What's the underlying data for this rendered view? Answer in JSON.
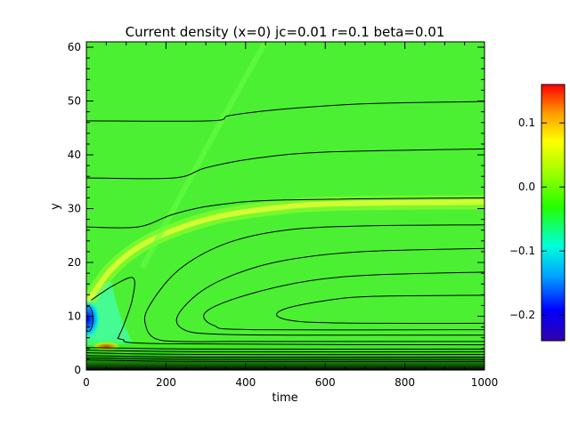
{
  "chart_data": {
    "type": "heatmap",
    "title": "Current density (x=0) jc=0.01 r=0.1 beta=0.01",
    "xlabel": "time",
    "ylabel": "y",
    "xlim": [
      0,
      1000
    ],
    "ylim": [
      0,
      61
    ],
    "xticks": [
      0,
      200,
      400,
      600,
      800,
      1000
    ],
    "yticks": [
      0,
      10,
      20,
      30,
      40,
      50,
      60
    ],
    "colorbar": {
      "range": [
        -0.24,
        0.16
      ],
      "ticks": [
        0.1,
        0.0,
        -0.1,
        -0.2
      ],
      "tick_labels": [
        "0.1",
        "0.0",
        "−0.1",
        "−0.2"
      ],
      "colormap": "rainbow"
    },
    "background_value": 0.0,
    "contour_levels": [
      {
        "label": "contour-1",
        "points": [
          [
            0,
            46.3
          ],
          [
            310,
            46.3
          ],
          [
            360,
            47.3
          ],
          [
            480,
            48.4
          ],
          [
            700,
            49.5
          ],
          [
            1000,
            49.9
          ]
        ]
      },
      {
        "label": "contour-2",
        "points": [
          [
            0,
            35.7
          ],
          [
            220,
            35.7
          ],
          [
            300,
            37.6
          ],
          [
            420,
            39.3
          ],
          [
            600,
            40.5
          ],
          [
            1000,
            41.1
          ]
        ]
      },
      {
        "label": "contour-3",
        "points": [
          [
            0,
            26.6
          ],
          [
            130,
            26.6
          ],
          [
            220,
            29.0
          ],
          [
            330,
            30.7
          ],
          [
            500,
            31.6
          ],
          [
            1000,
            32.0
          ]
        ]
      },
      {
        "label": "contour-4",
        "points": [
          [
            1000,
            27.0
          ],
          [
            700,
            26.8
          ],
          [
            500,
            26.0
          ],
          [
            350,
            23.5
          ],
          [
            230,
            18.5
          ],
          [
            155,
            11.5
          ],
          [
            150,
            8.0
          ],
          [
            175,
            5.8
          ],
          [
            240,
            5.3
          ],
          [
            400,
            5.3
          ],
          [
            1000,
            5.3
          ]
        ]
      },
      {
        "label": "contour-5",
        "points": [
          [
            1000,
            22.6
          ],
          [
            720,
            22.1
          ],
          [
            550,
            21.0
          ],
          [
            420,
            19.0
          ],
          [
            300,
            15.2
          ],
          [
            230,
            10.2
          ],
          [
            245,
            7.5
          ],
          [
            320,
            6.7
          ],
          [
            500,
            6.5
          ],
          [
            1000,
            6.5
          ]
        ]
      },
      {
        "label": "contour-6",
        "points": [
          [
            1000,
            18.2
          ],
          [
            730,
            17.7
          ],
          [
            560,
            16.6
          ],
          [
            400,
            13.9
          ],
          [
            300,
            10.8
          ],
          [
            320,
            8.3
          ],
          [
            420,
            7.5
          ],
          [
            1000,
            7.5
          ]
        ]
      },
      {
        "label": "contour-7",
        "points": [
          [
            1000,
            13.9
          ],
          [
            720,
            13.7
          ],
          [
            600,
            12.9
          ],
          [
            500,
            11.4
          ],
          [
            480,
            10.0
          ],
          [
            540,
            9.0
          ],
          [
            700,
            8.7
          ],
          [
            1000,
            8.7
          ]
        ]
      },
      {
        "label": "contour-8",
        "points": [
          [
            12,
            13.0
          ],
          [
            70,
            15.8
          ],
          [
            118,
            17.1
          ],
          [
            115,
            13.0
          ],
          [
            92,
            8.0
          ],
          [
            82,
            6.3
          ],
          [
            90,
            5.7
          ],
          [
            200,
            4.9
          ],
          [
            1000,
            4.7
          ]
        ]
      }
    ],
    "features": [
      {
        "name": "positive-ridge",
        "value": 0.02,
        "points": [
          [
            5,
            12.8
          ],
          [
            60,
            18.5
          ],
          [
            130,
            22.8
          ],
          [
            220,
            26.0
          ],
          [
            330,
            28.5
          ],
          [
            460,
            30.0
          ],
          [
            620,
            30.9
          ],
          [
            1000,
            31.2
          ]
        ]
      },
      {
        "name": "faint-diagonal",
        "value": 0.005,
        "points": [
          [
            140,
            19.0
          ],
          [
            300,
            41.0
          ],
          [
            450,
            61.0
          ]
        ]
      },
      {
        "name": "negative-core",
        "value": -0.24,
        "center": [
          3,
          9.5
        ]
      },
      {
        "name": "positive-peak",
        "value": 0.16,
        "center": [
          50,
          4.4
        ]
      }
    ]
  }
}
